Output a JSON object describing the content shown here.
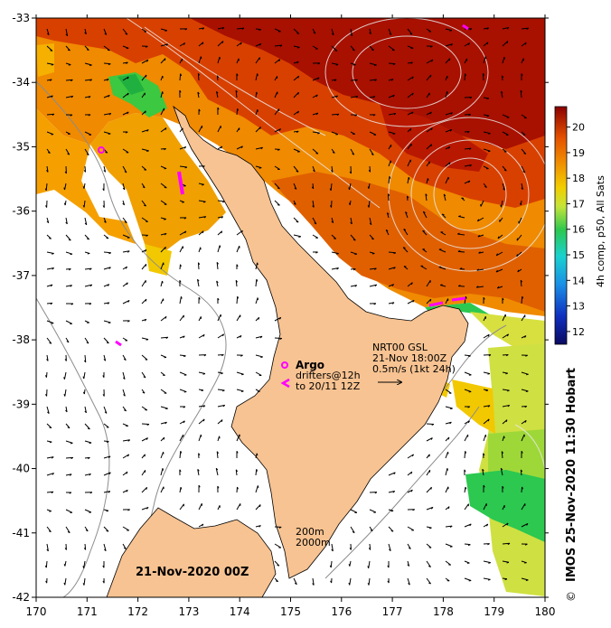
{
  "map": {
    "lon_ticks": [
      "170",
      "171",
      "172",
      "173",
      "174",
      "175",
      "176",
      "177",
      "178",
      "179",
      "180"
    ],
    "lat_ticks": [
      "-33",
      "-34",
      "-35",
      "-36",
      "-37",
      "-38",
      "-39",
      "-40",
      "-41",
      "-42"
    ],
    "lon_range": [
      170,
      180
    ],
    "lat_range": [
      -42,
      -33
    ]
  },
  "annotations": {
    "argo_label": "Argo",
    "drifters_line1": "drifters@12h",
    "drifters_line2": "to 20/11 12Z",
    "current_source": "NRT00 GSL",
    "current_time": "21-Nov 18:00Z",
    "current_scale": "0.5m/s (1kt 24h)",
    "isobath_200": "200m",
    "isobath_2000": "2000m",
    "map_date": "21-Nov-2020 00Z"
  },
  "colorbar": {
    "ticks": [
      "12",
      "13",
      "14",
      "15",
      "16",
      "17",
      "18",
      "19",
      "20"
    ],
    "title": "4h comp, p50, All Sats",
    "range": [
      11.5,
      20.8
    ]
  },
  "credit": {
    "copyright": "©",
    "text": "IMOS 25-Nov-2020 11:30 Hobart"
  },
  "colors": {
    "land": "#f7c392",
    "warm": "#a81000",
    "orange": "#f08a00",
    "green": "#3cc840",
    "argo_magenta": "#ff00ff"
  }
}
